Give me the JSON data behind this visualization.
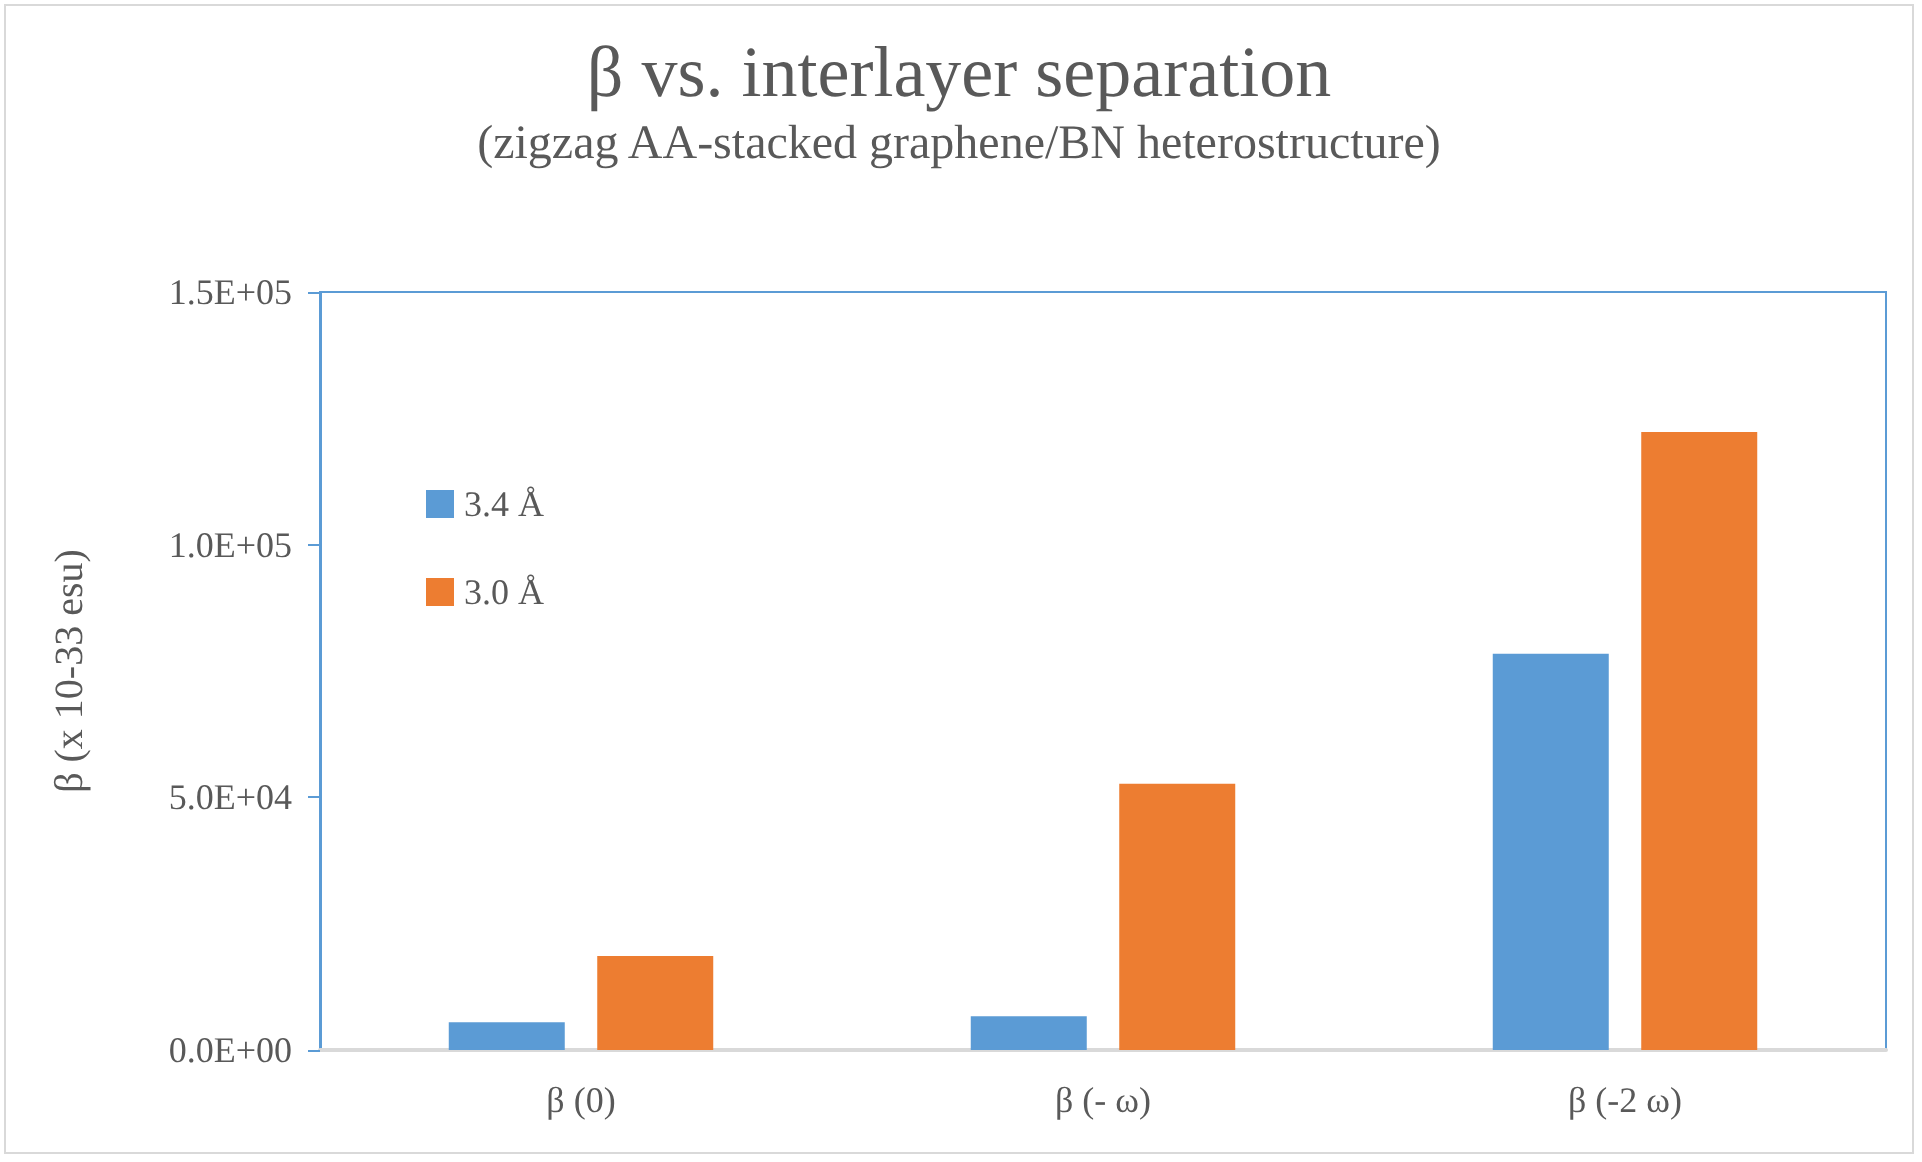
{
  "chart_data": {
    "type": "bar",
    "title": "β vs. interlayer separation",
    "subtitle": "(zigzag AA-stacked graphene/BN heterostructure)",
    "ylabel": "β (x 10-33 esu)",
    "categories": [
      "β (0)",
      "β (- ω)",
      "β (-2 ω)"
    ],
    "series": [
      {
        "name": "3.4 Å",
        "color": "#5b9bd5",
        "values": [
          5500,
          6700,
          78400
        ]
      },
      {
        "name": "3.0 Å",
        "color": "#ed7d31",
        "values": [
          18600,
          52700,
          122300
        ]
      }
    ],
    "ylim": [
      0,
      150000
    ],
    "yticks": [
      {
        "value": 0,
        "label": "0.0E+00"
      },
      {
        "value": 50000,
        "label": "5.0E+04"
      },
      {
        "value": 100000,
        "label": "1.0E+05"
      },
      {
        "value": 150000,
        "label": "1.5E+05"
      }
    ],
    "grid": false,
    "legend": "top left"
  }
}
